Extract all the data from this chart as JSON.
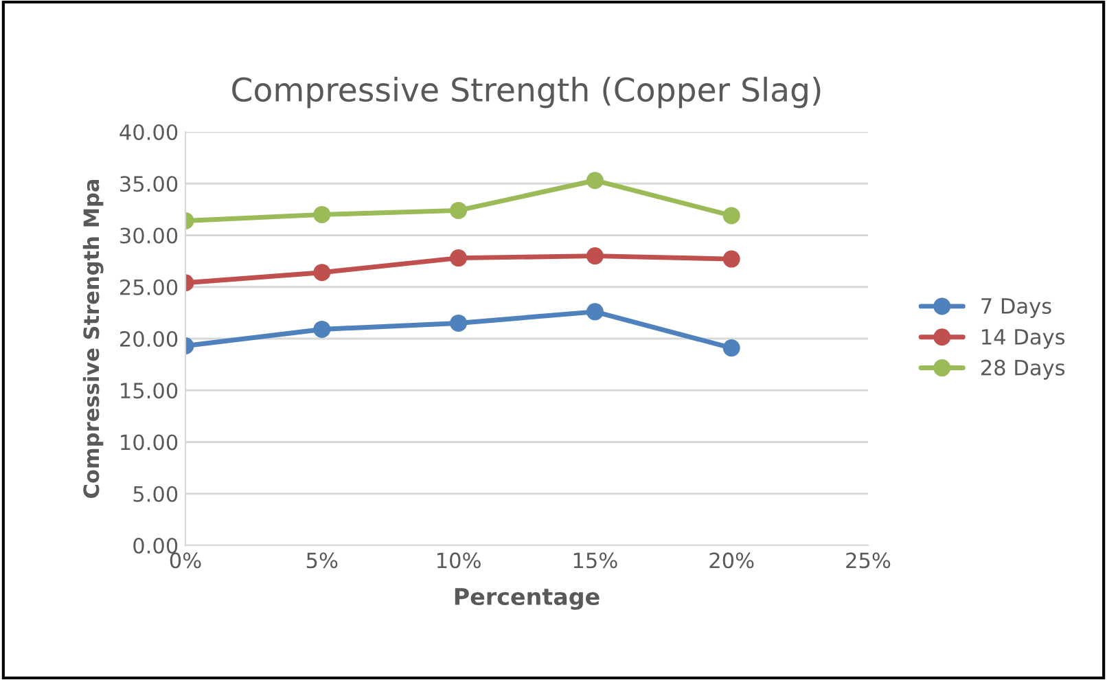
{
  "chart_data": {
    "type": "line",
    "title": "Compressive Strength (Copper Slag)",
    "xlabel": "Percentage",
    "ylabel": "Compressive Strength Mpa",
    "x": [
      0,
      5,
      10,
      15,
      20
    ],
    "series": [
      {
        "name": "7 Days",
        "color": "#4f81bd",
        "values": [
          19.3,
          20.9,
          21.5,
          22.6,
          19.1
        ]
      },
      {
        "name": "14 Days",
        "color": "#c0504d",
        "values": [
          25.4,
          26.4,
          27.8,
          28.0,
          27.7
        ]
      },
      {
        "name": "28 Days",
        "color": "#9bbb59",
        "values": [
          31.4,
          32.0,
          32.4,
          35.3,
          31.9
        ]
      }
    ],
    "xlim": [
      0,
      25
    ],
    "xticks": [
      {
        "value": 0,
        "label": "0%"
      },
      {
        "value": 5,
        "label": "5%"
      },
      {
        "value": 10,
        "label": "10%"
      },
      {
        "value": 15,
        "label": "15%"
      },
      {
        "value": 20,
        "label": "20%"
      },
      {
        "value": 25,
        "label": "25%"
      }
    ],
    "ylim": [
      0,
      40
    ],
    "yticks": [
      {
        "value": 0,
        "label": "0.00"
      },
      {
        "value": 5,
        "label": "5.00"
      },
      {
        "value": 10,
        "label": "10.00"
      },
      {
        "value": 15,
        "label": "15.00"
      },
      {
        "value": 20,
        "label": "20.00"
      },
      {
        "value": 25,
        "label": "25.00"
      },
      {
        "value": 30,
        "label": "30.00"
      },
      {
        "value": 35,
        "label": "35.00"
      },
      {
        "value": 40,
        "label": "40.00"
      }
    ],
    "grid": "y",
    "legend": "right",
    "marker": "circle",
    "line_style": "solid"
  }
}
